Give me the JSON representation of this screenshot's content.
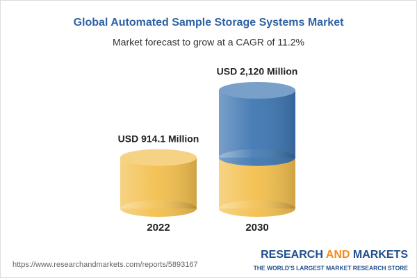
{
  "chart_data": {
    "type": "cylinder",
    "title": "Global Automated Sample Storage Systems Market",
    "subtitle": "Market forecast to grow at a CAGR of 11.2%",
    "categories": [
      "2022",
      "2030"
    ],
    "values": [
      914.1,
      2120
    ],
    "value_labels": [
      "USD 914.1 Million",
      "USD 2,120 Million"
    ],
    "color": "#f3c04f",
    "growth_color": "#3f77b2"
  },
  "footer": {
    "url": "https://www.researchandmarkets.com/reports/5893167",
    "brand": [
      "RESEARCH",
      "AND",
      "MARKETS"
    ],
    "tagline": "THE WORLD'S LARGEST MARKET RESEARCH STORE"
  }
}
